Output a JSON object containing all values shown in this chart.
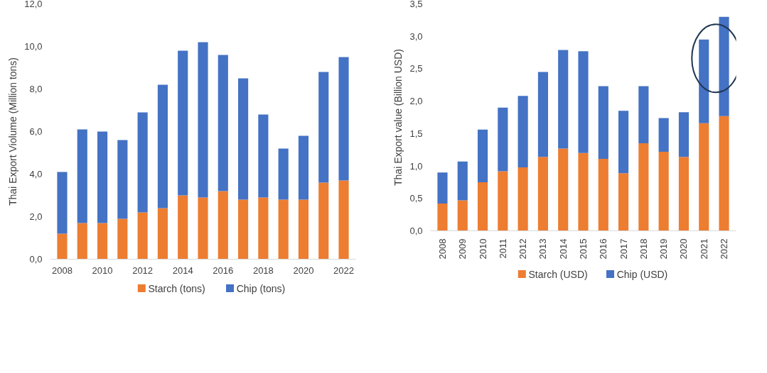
{
  "chart_data": [
    {
      "type": "bar",
      "stacked": true,
      "ylabel": "Thai Export Violume (Million tons)",
      "categories": [
        "2008",
        null,
        "2010",
        null,
        "2012",
        null,
        "2014",
        null,
        "2016",
        null,
        "2018",
        null,
        "2020",
        null,
        "2022"
      ],
      "series": [
        {
          "name": "Starch (tons)",
          "color": "#ed7d31",
          "values": [
            1.2,
            1.7,
            1.7,
            1.9,
            2.2,
            2.4,
            3.0,
            2.9,
            3.2,
            2.8,
            2.9,
            2.8,
            2.8,
            3.6,
            3.7
          ]
        },
        {
          "name": "Chip (tons)",
          "color": "#4472c4",
          "values": [
            2.9,
            4.4,
            4.3,
            3.7,
            4.7,
            5.8,
            6.8,
            7.3,
            6.4,
            5.7,
            3.9,
            2.4,
            3.0,
            5.2,
            5.8
          ]
        }
      ],
      "ylim": [
        0,
        12
      ],
      "yticks": [
        {
          "value": 0,
          "label": "0,0"
        },
        {
          "value": 2,
          "label": "2,0"
        },
        {
          "value": 4,
          "label": "4,0"
        },
        {
          "value": 6,
          "label": "6,0"
        },
        {
          "value": 8,
          "label": "8,0"
        },
        {
          "value": 10,
          "label": "10,0"
        },
        {
          "value": 12,
          "label": "12,0"
        }
      ],
      "grid": false,
      "legend": "bottom"
    },
    {
      "type": "bar",
      "stacked": true,
      "ylabel": "Thai Export value (Billion USD)",
      "categories": [
        "2008",
        "2009",
        "2010",
        "2011",
        "2012",
        "2013",
        "2014",
        "2015",
        "2016",
        "2017",
        "2018",
        "2019",
        "2020",
        "2021",
        "2022"
      ],
      "series": [
        {
          "name": "Starch (USD)",
          "color": "#ed7d31",
          "values": [
            0.42,
            0.47,
            0.75,
            0.92,
            0.98,
            1.14,
            1.27,
            1.2,
            1.11,
            0.89,
            1.35,
            1.22,
            1.14,
            1.66,
            1.77
          ]
        },
        {
          "name": "Chip (USD)",
          "color": "#4472c4",
          "values": [
            0.48,
            0.6,
            0.81,
            0.98,
            1.1,
            1.31,
            1.52,
            1.57,
            1.12,
            0.96,
            0.88,
            0.52,
            0.69,
            1.29,
            1.53
          ]
        }
      ],
      "ylim": [
        0,
        3.5
      ],
      "yticks": [
        {
          "value": 0,
          "label": "0,0"
        },
        {
          "value": 0.5,
          "label": "0,5"
        },
        {
          "value": 1,
          "label": "1,0"
        },
        {
          "value": 1.5,
          "label": "1,5"
        },
        {
          "value": 2,
          "label": "2,0"
        },
        {
          "value": 2.5,
          "label": "2,5"
        },
        {
          "value": 3,
          "label": "3,0"
        },
        {
          "value": 3.5,
          "label": "3,5"
        }
      ],
      "grid": false,
      "legend": "bottom"
    }
  ]
}
